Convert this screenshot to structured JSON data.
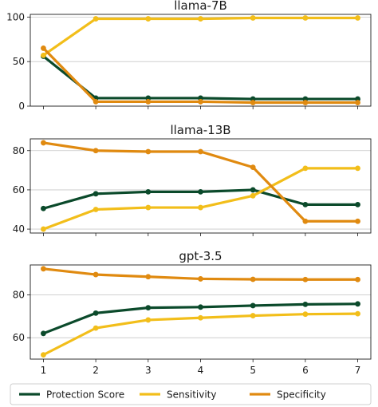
{
  "chart_data": {
    "type": "line",
    "x": [
      1,
      2,
      3,
      4,
      5,
      6,
      7
    ],
    "colors": {
      "Protection Score": "#0b4a2b",
      "Sensitivity": "#f2be1a",
      "Specificity": "#e08a10"
    },
    "legend": {
      "placement": "bottom",
      "entries": [
        "Protection Score",
        "Sensitivity",
        "Specificity"
      ]
    },
    "panels": [
      {
        "title": "llama-7B",
        "ylim": [
          0,
          103
        ],
        "yticks": [
          0,
          50,
          100
        ],
        "grid": "y",
        "series": [
          {
            "name": "Protection Score",
            "values": [
              56,
              9,
              9,
              9,
              8,
              8,
              8
            ]
          },
          {
            "name": "Sensitivity",
            "values": [
              57,
              98,
              98,
              98,
              99,
              99,
              99
            ]
          },
          {
            "name": "Specificity",
            "values": [
              65,
              5,
              5,
              5,
              4,
              4,
              4
            ]
          }
        ]
      },
      {
        "title": "llama-13B",
        "ylim": [
          38,
          86
        ],
        "yticks": [
          40,
          60,
          80
        ],
        "grid": "y",
        "series": [
          {
            "name": "Protection Score",
            "values": [
              50.5,
              58,
              59,
              59,
              60,
              52.5,
              52.5
            ]
          },
          {
            "name": "Sensitivity",
            "values": [
              40,
              50,
              51,
              51,
              57,
              71,
              71
            ]
          },
          {
            "name": "Specificity",
            "values": [
              84,
              80,
              79.5,
              79.5,
              71.5,
              44,
              44
            ]
          }
        ]
      },
      {
        "title": "gpt-3.5",
        "ylim": [
          50,
          94
        ],
        "yticks": [
          60,
          80
        ],
        "grid": "y",
        "series": [
          {
            "name": "Protection Score",
            "values": [
              62,
              71.5,
              74,
              74.3,
              75,
              75.6,
              75.8
            ]
          },
          {
            "name": "Sensitivity",
            "values": [
              52,
              64.5,
              68.3,
              69.3,
              70.3,
              71,
              71.2
            ]
          },
          {
            "name": "Specificity",
            "values": [
              92.2,
              89.5,
              88.5,
              87.5,
              87.3,
              87.2,
              87.2
            ]
          }
        ]
      }
    ],
    "xticks": [
      "1",
      "2",
      "3",
      "4",
      "5",
      "6",
      "7"
    ]
  }
}
